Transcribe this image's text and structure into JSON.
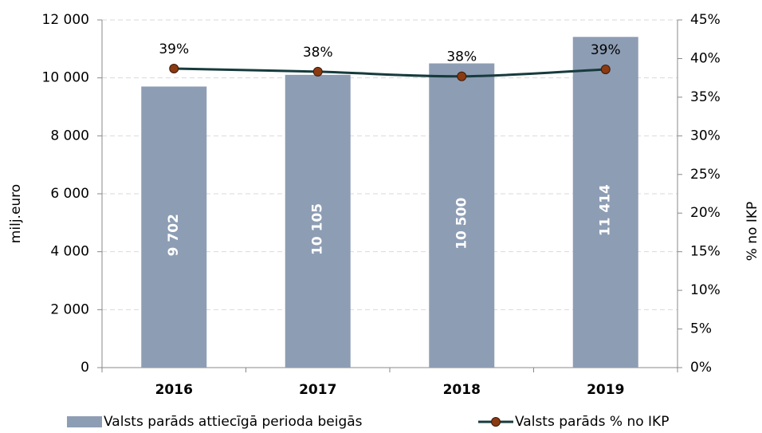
{
  "chart_data": {
    "type": "bar",
    "categories": [
      "2016",
      "2017",
      "2018",
      "2019"
    ],
    "series": [
      {
        "name": "Valsts parāds attiecīgā perioda beigās",
        "type": "bar",
        "color": "#8d9db4",
        "values": [
          9702,
          10105,
          10500,
          11414
        ],
        "value_labels": [
          "9 702",
          "10 105",
          "10 500",
          "11 414"
        ]
      },
      {
        "name": "Valsts parāds % no IKP",
        "type": "line",
        "axis": "y2",
        "color": "#173b3d",
        "marker_color": "#8b3a12",
        "values": [
          38.7,
          38.3,
          37.7,
          38.6
        ],
        "value_labels": [
          "39%",
          "38%",
          "38%",
          "39%"
        ]
      }
    ],
    "ylabel": "milj.euro",
    "y2label": "% no IKP",
    "ylim": [
      0,
      12000
    ],
    "yticks": [
      0,
      {
        "value": 2000,
        "label": "2 000"
      },
      {
        "value": 4000,
        "label": "4 000"
      },
      {
        "value": 6000,
        "label": "6 000"
      },
      {
        "value": 8000,
        "label": "8 000"
      },
      {
        "value": 10000,
        "label": "10 000"
      },
      {
        "value": 12000,
        "label": "12 000"
      }
    ],
    "y2lim": [
      0,
      45
    ],
    "y2ticks": [
      {
        "value": 0,
        "label": "0%"
      },
      {
        "value": 5,
        "label": "5%"
      },
      {
        "value": 10,
        "label": "10%"
      },
      {
        "value": 15,
        "label": "15%"
      },
      {
        "value": 20,
        "label": "20%"
      },
      {
        "value": 25,
        "label": "25%"
      },
      {
        "value": 30,
        "label": "30%"
      },
      {
        "value": 35,
        "label": "35%"
      },
      {
        "value": 40,
        "label": "40%"
      },
      {
        "value": 45,
        "label": "45%"
      }
    ],
    "grid": true,
    "legend": "bottom"
  }
}
